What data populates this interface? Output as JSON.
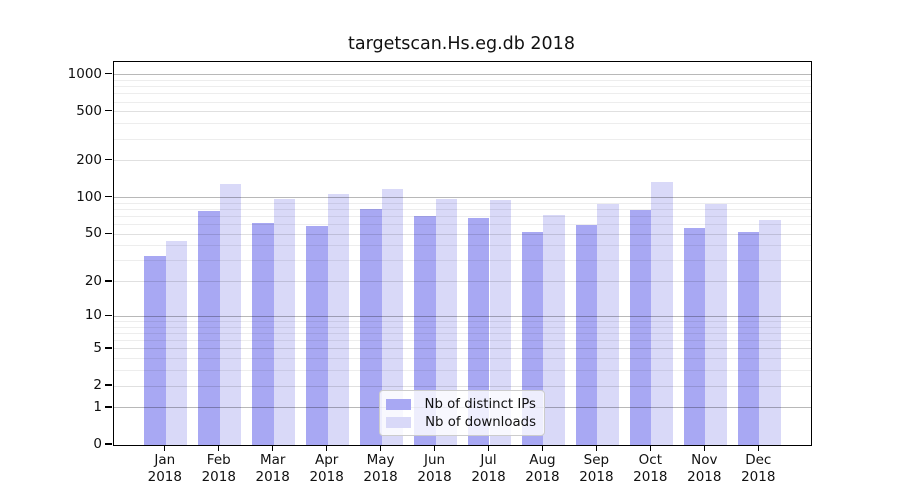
{
  "chart_data": {
    "type": "bar",
    "title": "targetscan.Hs.eg.db 2018",
    "categories": [
      "Jan 2018",
      "Feb 2018",
      "Mar 2018",
      "Apr 2018",
      "May 2018",
      "Jun 2018",
      "Jul 2018",
      "Aug 2018",
      "Sep 2018",
      "Oct 2018",
      "Nov 2018",
      "Dec 2018"
    ],
    "series": [
      {
        "name": "Nb of distinct IPs",
        "values": [
          33,
          77,
          62,
          59,
          80,
          71,
          68,
          52,
          60,
          79,
          56,
          52
        ]
      },
      {
        "name": "Nb of downloads",
        "values": [
          44,
          130,
          97,
          108,
          117,
          97,
          95,
          72,
          88,
          133,
          88,
          65
        ]
      }
    ],
    "yticks": [
      0,
      1,
      2,
      5,
      10,
      20,
      50,
      100,
      200,
      500,
      1000
    ],
    "yscale": "log1p",
    "ylim": [
      0,
      1290
    ],
    "xlabel": "",
    "ylabel": "",
    "grid": true,
    "legend_position": "inside bottom-center",
    "colors": {
      "distinct_ips": "#a8a8f3",
      "downloads": "#d9d9f8",
      "axis": "#000000",
      "grid_major": "#b8b8b8",
      "grid_minor": "#ececec",
      "text": "#111111",
      "background": "#ffffff"
    }
  }
}
